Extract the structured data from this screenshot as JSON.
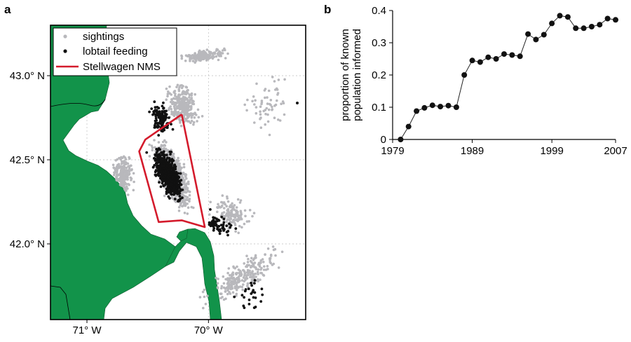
{
  "panels": {
    "a_label": "a",
    "b_label": "b"
  },
  "colors": {
    "land": "#12934a",
    "sightings": "#b8b8bc",
    "lobtail": "#111111",
    "boundary": "#d41b2c",
    "grid": "#bdbdbd"
  },
  "chart_data": [
    {
      "type": "scatter",
      "panel": "a",
      "title": "",
      "x_tick_labels": [
        "71° W",
        "70° W"
      ],
      "y_tick_labels": [
        "43.0° N",
        "42.5° N",
        "42.0° N"
      ],
      "x_ticks_lon": [
        -71.0,
        -70.0
      ],
      "y_ticks_lat": [
        43.0,
        42.5,
        42.0
      ],
      "xlim": [
        -71.3,
        -69.2
      ],
      "ylim": [
        41.55,
        43.3
      ],
      "grid": true,
      "legend_position": "top-left",
      "series": [
        {
          "name": "sightings",
          "marker": "dot",
          "color": "#b8b8bc"
        },
        {
          "name": "lobtail feeding",
          "marker": "dot",
          "color": "#111111"
        },
        {
          "name": "Stellwagen NMS",
          "marker": "line",
          "color": "#d41b2c",
          "polygon_lonlat": [
            [
              -70.22,
              42.77
            ],
            [
              -70.52,
              42.62
            ],
            [
              -70.57,
              42.55
            ],
            [
              -70.41,
              42.13
            ],
            [
              -70.22,
              42.14
            ],
            [
              -70.03,
              42.1
            ],
            [
              -70.22,
              42.77
            ]
          ]
        }
      ]
    },
    {
      "type": "line",
      "panel": "b",
      "title": "",
      "xlabel": "",
      "ylabel": "proportion of known population informed",
      "ylabel_lines": [
        "proportion of known",
        "population informed"
      ],
      "xlim": [
        1979,
        2007
      ],
      "ylim": [
        0,
        0.4
      ],
      "x_tick_labels": [
        "1979",
        "1989",
        "1999",
        "2007"
      ],
      "x_ticks": [
        1979,
        1989,
        1999,
        2007
      ],
      "y_tick_labels": [
        "0",
        "0.1",
        "0.2",
        "0.3",
        "0.4"
      ],
      "y_ticks": [
        0,
        0.1,
        0.2,
        0.3,
        0.4
      ],
      "grid": false,
      "x": [
        1980,
        1981,
        1982,
        1983,
        1984,
        1985,
        1986,
        1987,
        1988,
        1989,
        1990,
        1991,
        1992,
        1993,
        1994,
        1995,
        1996,
        1997,
        1998,
        1999,
        2000,
        2001,
        2002,
        2003,
        2004,
        2005,
        2006,
        2007
      ],
      "values": [
        0.0,
        0.04,
        0.088,
        0.098,
        0.106,
        0.102,
        0.105,
        0.1,
        0.2,
        0.245,
        0.24,
        0.255,
        0.25,
        0.265,
        0.262,
        0.258,
        0.327,
        0.31,
        0.325,
        0.36,
        0.384,
        0.38,
        0.345,
        0.345,
        0.35,
        0.356,
        0.375,
        0.371
      ]
    }
  ]
}
